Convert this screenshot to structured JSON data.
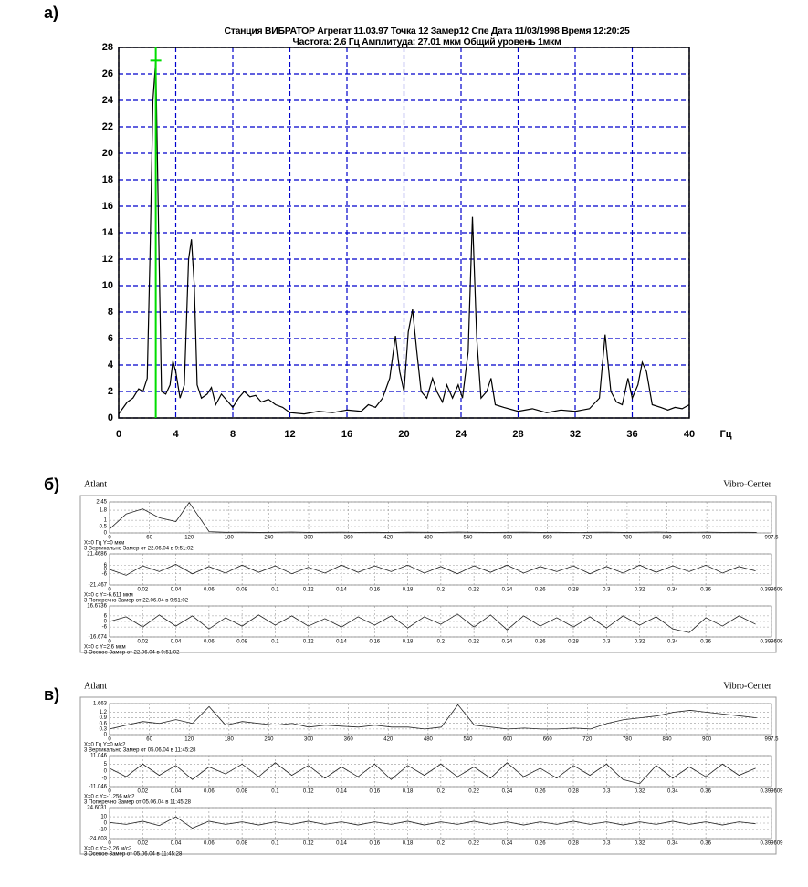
{
  "chart_data": [
    {
      "type": "line",
      "panel_label": "а)",
      "title": "Станция ВИБРАТОР   Агрегат 11.03.97   Точка 12   Замер12 Спе   Дата 11/03/1998   Время 12:20:25",
      "subtitle": "Частота: 2.6 Гц Амплитуда: 27.01 мкм Общий уровень 1мкм",
      "x_label": "Гц",
      "xlim": [
        0,
        40
      ],
      "xticks": [
        0,
        4,
        8,
        12,
        16,
        20,
        24,
        28,
        32,
        36,
        40
      ],
      "ylim": [
        0,
        28
      ],
      "yticks": [
        0,
        2,
        4,
        6,
        8,
        10,
        12,
        14,
        16,
        18,
        20,
        22,
        24,
        26,
        28
      ],
      "grid": true,
      "grid_color": "#0000cc",
      "cursor": {
        "x": 2.6,
        "y": 27.01,
        "color": "#00dd00"
      },
      "series": [
        {
          "color": "#000000",
          "x": [
            0,
            0.6,
            1.0,
            1.4,
            1.7,
            2.0,
            2.2,
            2.4,
            2.6,
            2.8,
            3.0,
            3.3,
            3.6,
            3.8,
            4.0,
            4.3,
            4.6,
            4.9,
            5.1,
            5.3,
            5.5,
            5.8,
            6.2,
            6.5,
            6.8,
            7.2,
            7.6,
            8.0,
            8.4,
            8.8,
            9.2,
            9.6,
            10,
            10.5,
            11,
            11.5,
            12,
            13,
            14,
            15,
            16,
            17,
            17.5,
            18,
            18.5,
            19,
            19.4,
            19.7,
            20.0,
            20.3,
            20.6,
            20.9,
            21.2,
            21.6,
            22.0,
            22.3,
            22.7,
            23.0,
            23.4,
            23.8,
            24.1,
            24.5,
            24.8,
            25.1,
            25.4,
            25.8,
            26.1,
            26.4,
            27,
            28,
            29,
            30,
            31,
            32,
            33,
            33.7,
            34.1,
            34.5,
            34.9,
            35.3,
            35.7,
            36.0,
            36.4,
            36.7,
            37.0,
            37.4,
            38,
            38.5,
            39,
            39.5,
            40
          ],
          "values": [
            0.3,
            1.2,
            1.5,
            2.2,
            2,
            3,
            12.5,
            24,
            27,
            14,
            2,
            1.8,
            2.5,
            4.3,
            3.5,
            1.5,
            2.5,
            12,
            13.5,
            10,
            2.5,
            1.5,
            1.8,
            2.3,
            1,
            1.8,
            1.3,
            0.8,
            1.5,
            2.0,
            1.6,
            1.7,
            1.2,
            1.4,
            1.0,
            0.8,
            0.4,
            0.3,
            0.5,
            0.4,
            0.6,
            0.5,
            1.0,
            0.8,
            1.5,
            3.0,
            6.2,
            3.5,
            2.0,
            6.5,
            8.2,
            5.0,
            2.0,
            1.5,
            3.0,
            2.0,
            1.2,
            2.5,
            1.5,
            2.5,
            1.5,
            5.0,
            15.2,
            6,
            1.5,
            2.0,
            3.0,
            1.0,
            0.8,
            0.5,
            0.7,
            0.4,
            0.6,
            0.5,
            0.7,
            1.5,
            6.3,
            2.0,
            1.2,
            1.0,
            3.0,
            1.5,
            2.5,
            4.2,
            3.5,
            1.0,
            0.8,
            0.6,
            0.8,
            0.7,
            1.0
          ]
        }
      ]
    },
    {
      "type": "line",
      "panel_label": "б)",
      "header": [
        "Atlant",
        "Vibro-Center"
      ],
      "footer": [
        "X=0 Гц    Y=0 мкм",
        "3 Вертикально Замер от 22.06.04 в 9:51:02"
      ],
      "xlim": [
        0,
        997.5
      ],
      "xticks": [
        0,
        60,
        120,
        180,
        240,
        300,
        360,
        420,
        480,
        540,
        600,
        660,
        720,
        780,
        840,
        900,
        997.5
      ],
      "ylim": [
        0,
        2.45
      ],
      "yticks": [
        0,
        0.5,
        1,
        1.8,
        2.45
      ],
      "grid": true,
      "grid_color": "#999999",
      "series": [
        {
          "color": "#222222",
          "x": [
            0,
            25,
            50,
            75,
            100,
            120,
            150,
            175,
            200,
            225,
            250,
            275,
            300,
            325,
            350,
            375,
            400,
            425,
            450,
            475,
            500,
            525,
            550,
            575,
            600,
            625,
            650,
            675,
            700,
            725,
            750,
            775,
            800,
            825,
            850,
            875,
            900,
            925,
            950,
            975
          ],
          "values": [
            0.3,
            1.5,
            1.9,
            1.2,
            0.9,
            2.4,
            0.1,
            0.05,
            0.06,
            0.04,
            0.05,
            0.07,
            0.04,
            0.05,
            0.06,
            0.04,
            0.05,
            0.03,
            0.06,
            0.05,
            0.04,
            0.07,
            0.05,
            0.04,
            0.05,
            0.06,
            0.04,
            0.05,
            0.03,
            0.05,
            0.06,
            0.04,
            0.05,
            0.07,
            0.04,
            0.05,
            0.06,
            0.04,
            0.05,
            0.04
          ]
        }
      ]
    },
    {
      "type": "line",
      "footer": [
        "X=0 с    Y=-6.611 мкм",
        "3 Поперечно Замер от 22.06.04 в 9:51:02"
      ],
      "xlim": [
        0,
        0.399609
      ],
      "xticks": [
        0,
        0.02,
        0.04,
        0.06,
        0.08,
        0.1,
        0.12,
        0.14,
        0.16,
        0.18,
        0.2,
        0.22,
        0.24,
        0.26,
        0.28,
        0.3,
        0.32,
        0.34,
        0.36,
        0.399609
      ],
      "ylim": [
        -21.467,
        21.4686
      ],
      "yticks": [
        -21.467,
        -6,
        0,
        6,
        21.4686
      ],
      "grid": true,
      "grid_color": "#999999",
      "series": [
        {
          "color": "#222222",
          "x": [
            0,
            0.01,
            0.02,
            0.03,
            0.04,
            0.05,
            0.06,
            0.07,
            0.08,
            0.09,
            0.1,
            0.11,
            0.12,
            0.13,
            0.14,
            0.15,
            0.16,
            0.17,
            0.18,
            0.19,
            0.2,
            0.21,
            0.22,
            0.23,
            0.24,
            0.25,
            0.26,
            0.27,
            0.28,
            0.29,
            0.3,
            0.31,
            0.32,
            0.33,
            0.34,
            0.35,
            0.36,
            0.37,
            0.38,
            0.39
          ],
          "values": [
            0,
            -8,
            5,
            -3,
            7,
            -6,
            4,
            -5,
            6,
            -4,
            5,
            -6,
            3,
            -5,
            6,
            -4,
            5,
            -3,
            6,
            -5,
            4,
            -6,
            5,
            -4,
            6,
            -5,
            4,
            -3,
            5,
            -6,
            4,
            -5,
            6,
            -4,
            5,
            -3,
            6,
            -5,
            4,
            -2
          ]
        }
      ]
    },
    {
      "type": "line",
      "footer": [
        "X=0 с    Y=2.6 мкм",
        "3 Осевое Замер от 22.06.04 в 9:51:02"
      ],
      "xlim": [
        0,
        0.399609
      ],
      "xticks": [
        0,
        0.02,
        0.04,
        0.06,
        0.08,
        0.1,
        0.12,
        0.14,
        0.16,
        0.18,
        0.2,
        0.22,
        0.24,
        0.26,
        0.28,
        0.3,
        0.32,
        0.34,
        0.36,
        0.399609
      ],
      "ylim": [
        -16.674,
        16.6736
      ],
      "yticks": [
        -16.674,
        -6,
        0,
        6,
        16.6736
      ],
      "grid": true,
      "grid_color": "#999999",
      "series": [
        {
          "color": "#222222",
          "x": [
            0,
            0.01,
            0.02,
            0.03,
            0.04,
            0.05,
            0.06,
            0.07,
            0.08,
            0.09,
            0.1,
            0.11,
            0.12,
            0.13,
            0.14,
            0.15,
            0.16,
            0.17,
            0.18,
            0.19,
            0.2,
            0.21,
            0.22,
            0.23,
            0.24,
            0.25,
            0.26,
            0.27,
            0.28,
            0.29,
            0.3,
            0.31,
            0.32,
            0.33,
            0.34,
            0.35,
            0.36,
            0.37,
            0.38,
            0.39
          ],
          "values": [
            0,
            5,
            -6,
            7,
            -5,
            6,
            -8,
            4,
            -5,
            7,
            -4,
            6,
            -5,
            3,
            -6,
            5,
            -4,
            6,
            -7,
            5,
            -3,
            8,
            -6,
            7,
            -9,
            6,
            -5,
            4,
            -6,
            5,
            -7,
            6,
            -4,
            5,
            -8,
            -12,
            4,
            -5,
            6,
            -3
          ]
        }
      ]
    },
    {
      "type": "line",
      "panel_label": "в)",
      "header": [
        "Atlant",
        "Vibro-Center"
      ],
      "footer": [
        "X=0 Гц    Y=0 м/с2",
        "3 Вертикально Замер от 05.06.04 в 11:45:28"
      ],
      "xlim": [
        0,
        997.5
      ],
      "xticks": [
        0,
        60,
        120,
        180,
        240,
        300,
        360,
        420,
        480,
        540,
        600,
        660,
        720,
        780,
        840,
        900,
        997.5
      ],
      "ylim": [
        0,
        1.663
      ],
      "yticks": [
        0,
        0.3,
        0.6,
        0.9,
        1.2,
        1.663
      ],
      "grid": true,
      "grid_color": "#999999",
      "series": [
        {
          "color": "#222222",
          "x": [
            0,
            25,
            50,
            75,
            100,
            125,
            150,
            175,
            200,
            225,
            250,
            275,
            300,
            325,
            350,
            375,
            400,
            425,
            450,
            475,
            500,
            525,
            550,
            575,
            600,
            625,
            650,
            675,
            700,
            725,
            750,
            775,
            800,
            825,
            850,
            875,
            900,
            925,
            950,
            975
          ],
          "values": [
            0.3,
            0.5,
            0.7,
            0.6,
            0.8,
            0.6,
            1.5,
            0.5,
            0.7,
            0.6,
            0.5,
            0.6,
            0.4,
            0.5,
            0.45,
            0.4,
            0.5,
            0.4,
            0.4,
            0.3,
            0.4,
            1.6,
            0.5,
            0.4,
            0.3,
            0.35,
            0.3,
            0.3,
            0.35,
            0.3,
            0.6,
            0.8,
            0.9,
            1.0,
            1.2,
            1.3,
            1.2,
            1.1,
            1.0,
            0.9
          ]
        }
      ]
    },
    {
      "type": "line",
      "footer": [
        "X=0 с    Y=-1.256 м/с2",
        "3 Поперечно Замер от 05.06.04 в 11:45:28"
      ],
      "xlim": [
        0,
        0.399609
      ],
      "xticks": [
        0,
        0.02,
        0.04,
        0.06,
        0.08,
        0.1,
        0.12,
        0.14,
        0.16,
        0.18,
        0.2,
        0.22,
        0.24,
        0.26,
        0.28,
        0.3,
        0.32,
        0.34,
        0.36,
        0.399609
      ],
      "ylim": [
        -11.046,
        11.046
      ],
      "yticks": [
        -11.046,
        -5,
        0,
        5,
        11.046
      ],
      "grid": true,
      "grid_color": "#999999",
      "series": [
        {
          "color": "#222222",
          "x": [
            0,
            0.01,
            0.02,
            0.03,
            0.04,
            0.05,
            0.06,
            0.07,
            0.08,
            0.09,
            0.1,
            0.11,
            0.12,
            0.13,
            0.14,
            0.15,
            0.16,
            0.17,
            0.18,
            0.19,
            0.2,
            0.21,
            0.22,
            0.23,
            0.24,
            0.25,
            0.26,
            0.27,
            0.28,
            0.29,
            0.3,
            0.31,
            0.32,
            0.33,
            0.34,
            0.35,
            0.36,
            0.37,
            0.38,
            0.39
          ],
          "values": [
            2,
            -4,
            5,
            -3,
            4,
            -6,
            3,
            -2,
            5,
            -4,
            6,
            -3,
            4,
            -5,
            3,
            -4,
            5,
            -6,
            4,
            -3,
            5,
            -4,
            3,
            -5,
            6,
            -4,
            2,
            -5,
            4,
            -3,
            5,
            -6,
            -9,
            4,
            -5,
            3,
            -4,
            5,
            -3,
            2
          ]
        }
      ]
    },
    {
      "type": "line",
      "footer": [
        "X=0 с    Y=-2.26 м/с2",
        "3 Осевое Замер от 05.06.04 в 11:45:28"
      ],
      "xlim": [
        0,
        0.399609
      ],
      "xticks": [
        0,
        0.02,
        0.04,
        0.06,
        0.08,
        0.1,
        0.12,
        0.14,
        0.16,
        0.18,
        0.2,
        0.22,
        0.24,
        0.26,
        0.28,
        0.3,
        0.32,
        0.34,
        0.36,
        0.399609
      ],
      "ylim": [
        -24.603,
        24.6031
      ],
      "yticks": [
        -24.603,
        -10,
        0,
        10,
        24.6031
      ],
      "grid": true,
      "grid_color": "#999999",
      "series": [
        {
          "color": "#222222",
          "x": [
            0,
            0.01,
            0.02,
            0.03,
            0.04,
            0.05,
            0.06,
            0.07,
            0.08,
            0.09,
            0.1,
            0.11,
            0.12,
            0.13,
            0.14,
            0.15,
            0.16,
            0.17,
            0.18,
            0.19,
            0.2,
            0.21,
            0.22,
            0.23,
            0.24,
            0.25,
            0.26,
            0.27,
            0.28,
            0.29,
            0.3,
            0.31,
            0.32,
            0.33,
            0.34,
            0.35,
            0.36,
            0.37,
            0.38,
            0.39
          ],
          "values": [
            1,
            -2,
            3,
            -4,
            10,
            -8,
            3,
            -2,
            2,
            -3,
            2,
            -2,
            3,
            -2,
            2,
            -3,
            2,
            -2,
            3,
            -3,
            2,
            -2,
            3,
            -2,
            2,
            -3,
            2,
            -2,
            3,
            -2,
            2,
            -3,
            2,
            -2,
            3,
            -2,
            2,
            -3,
            2,
            -1
          ]
        }
      ]
    }
  ]
}
